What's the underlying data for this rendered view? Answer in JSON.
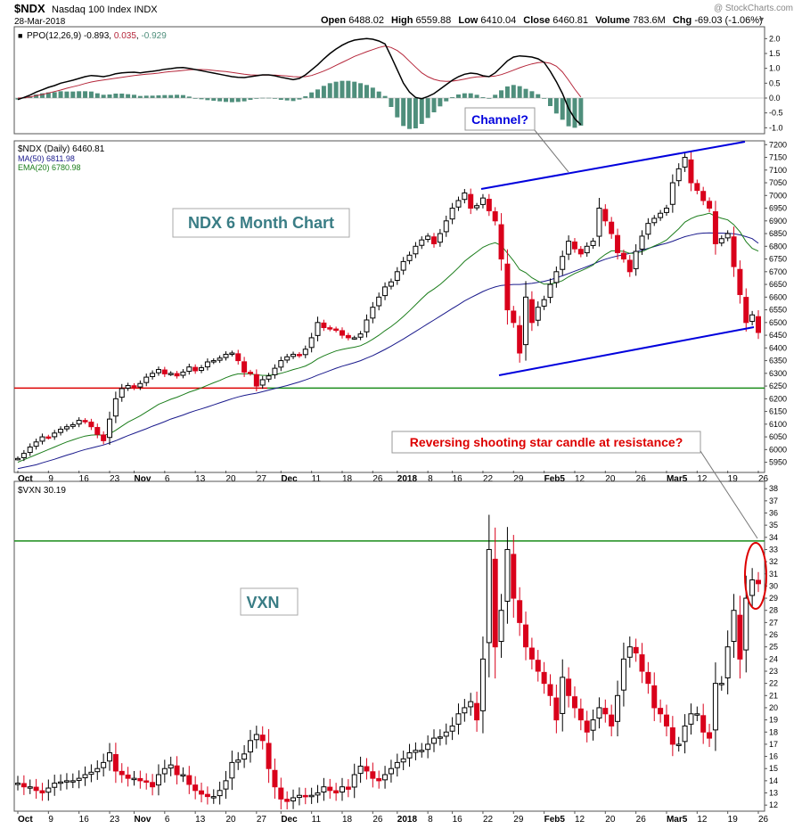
{
  "header": {
    "symbol": "$NDX",
    "name": "Nasdaq 100 Index",
    "exchange": "INDX",
    "date": "28-Mar-2018",
    "quote_open_label": "Open",
    "quote_open": "6488.02",
    "quote_high_label": "High",
    "quote_high": "6559.88",
    "quote_low_label": "Low",
    "quote_low": "6410.04",
    "quote_close_label": "Close",
    "quote_close": "6460.81",
    "quote_volume_label": "Volume",
    "quote_volume": "783.6M",
    "quote_chg_label": "Chg",
    "quote_chg": "-69.03 (-1.06%)",
    "watermark": "@ StockCharts.com"
  },
  "colors": {
    "up": "#000000",
    "down": "#d9001b",
    "ppo": "#000000",
    "signal": "#b5263a",
    "hist": "#4f8f7c",
    "ma50": "#1a1a8c",
    "ema20": "#1b7d1b",
    "annotation_blue": "#0000dd",
    "annotation_red": "#dd0000",
    "green_line": "#1a8c1a",
    "red_line": "#dd0000"
  },
  "chart_data": [
    {
      "type": "line",
      "panel": "ppo",
      "legend": {
        "name": "PPO(12,26,9)",
        "v1": "-0.893",
        "v2": "0.035",
        "v3": "-0.929"
      },
      "ylim": [
        -1.2,
        2.4
      ],
      "ticks": [
        "2.0",
        "1.5",
        "1.0",
        "0.5",
        "0.0",
        "-0.5",
        "-1.0"
      ],
      "ppo": [
        -0.05,
        0.02,
        0.1,
        0.2,
        0.28,
        0.36,
        0.42,
        0.5,
        0.55,
        0.6,
        0.66,
        0.72,
        0.76,
        0.74,
        0.72,
        0.76,
        0.82,
        0.85,
        0.86,
        0.87,
        0.85,
        0.88,
        0.9,
        0.93,
        0.97,
        0.99,
        1.02,
        1.03,
        1.0,
        0.96,
        0.92,
        0.88,
        0.84,
        0.8,
        0.76,
        0.72,
        0.7,
        0.69,
        0.72,
        0.75,
        0.78,
        0.78,
        0.75,
        0.7,
        0.66,
        0.62,
        0.66,
        0.78,
        0.95,
        1.12,
        1.32,
        1.5,
        1.65,
        1.78,
        1.88,
        1.95,
        1.98,
        2.0,
        1.98,
        1.92,
        1.82,
        1.4,
        0.95,
        0.5,
        0.2,
        0.02,
        -0.02,
        0.05,
        0.15,
        0.3,
        0.45,
        0.6,
        0.72,
        0.8,
        0.84,
        0.82,
        0.75,
        0.72,
        0.85,
        1.05,
        1.25,
        1.38,
        1.42,
        1.4,
        1.38,
        1.32,
        1.2,
        0.9,
        0.55,
        0.15,
        -0.35,
        -0.7,
        -0.893
      ],
      "signal": [
        0.0,
        0.01,
        0.04,
        0.08,
        0.12,
        0.17,
        0.22,
        0.27,
        0.33,
        0.38,
        0.43,
        0.49,
        0.54,
        0.58,
        0.61,
        0.64,
        0.67,
        0.7,
        0.73,
        0.76,
        0.78,
        0.8,
        0.82,
        0.84,
        0.87,
        0.89,
        0.91,
        0.93,
        0.95,
        0.96,
        0.96,
        0.95,
        0.93,
        0.91,
        0.89,
        0.86,
        0.83,
        0.8,
        0.78,
        0.77,
        0.77,
        0.77,
        0.77,
        0.76,
        0.74,
        0.72,
        0.71,
        0.72,
        0.76,
        0.83,
        0.91,
        1.0,
        1.1,
        1.2,
        1.3,
        1.4,
        1.48,
        1.56,
        1.63,
        1.7,
        1.75,
        1.7,
        1.6,
        1.44,
        1.24,
        1.04,
        0.85,
        0.72,
        0.63,
        0.58,
        0.56,
        0.57,
        0.6,
        0.64,
        0.68,
        0.71,
        0.72,
        0.72,
        0.74,
        0.79,
        0.86,
        0.94,
        1.02,
        1.09,
        1.15,
        1.19,
        1.21,
        1.17,
        1.07,
        0.88,
        0.6,
        0.3,
        0.035
      ]
    },
    {
      "type": "candlestick",
      "panel": "ndx",
      "legend": {
        "name": "$NDX (Daily)",
        "value": "6460.81",
        "ma_label": "MA(50)",
        "ma_value": "6811.98",
        "ema_label": "EMA(20)",
        "ema_value": "6780.98"
      },
      "ylim": [
        5910,
        7215
      ],
      "ticks": [
        "7200",
        "7150",
        "7100",
        "7050",
        "7000",
        "6950",
        "6900",
        "6850",
        "6800",
        "6750",
        "6700",
        "6650",
        "6600",
        "6550",
        "6500",
        "6450",
        "6400",
        "6350",
        "6300",
        "6250",
        "6200",
        "6150",
        "6100",
        "6050",
        "6000",
        "5950"
      ],
      "x_labels": [
        "Oct",
        "9",
        "16",
        "23",
        "Nov",
        "6",
        "13",
        "20",
        "27",
        "Dec",
        "11",
        "18",
        "26",
        "2018",
        "8",
        "16",
        "22",
        "29",
        "Feb5",
        "12",
        "20",
        "26",
        "Mar5",
        "12",
        "19",
        "26"
      ],
      "x_label_index": [
        0,
        5,
        10,
        15,
        19,
        24,
        29,
        34,
        39,
        43,
        48,
        53,
        58,
        62,
        67,
        71,
        76,
        81,
        86,
        91,
        96,
        101,
        106,
        111,
        116,
        121
      ],
      "close": [
        5965,
        5985,
        6010,
        6030,
        6050,
        6048,
        6065,
        6080,
        6090,
        6098,
        6115,
        6110,
        6090,
        6060,
        6035,
        6120,
        6200,
        6240,
        6252,
        6244,
        6260,
        6285,
        6300,
        6315,
        6298,
        6300,
        6290,
        6305,
        6325,
        6310,
        6322,
        6345,
        6350,
        6360,
        6375,
        6380,
        6350,
        6305,
        6300,
        6250,
        6275,
        6290,
        6320,
        6350,
        6365,
        6375,
        6370,
        6395,
        6440,
        6500,
        6480,
        6475,
        6470,
        6450,
        6440,
        6440,
        6455,
        6510,
        6560,
        6600,
        6640,
        6660,
        6700,
        6740,
        6765,
        6800,
        6825,
        6840,
        6810,
        6850,
        6900,
        6950,
        6980,
        7010,
        6950,
        6960,
        6990,
        6940,
        6900,
        6750,
        6550,
        6500,
        6380,
        6600,
        6500,
        6560,
        6590,
        6650,
        6700,
        6760,
        6820,
        6790,
        6770,
        6800,
        6820,
        6950,
        6900,
        6850,
        6775,
        6750,
        6700,
        6780,
        6840,
        6890,
        6910,
        6930,
        6950,
        7050,
        7105,
        7150,
        7050,
        7020,
        6980,
        6950,
        6810,
        6830,
        6850,
        6720,
        6610,
        6500,
        6530,
        6460.81
      ],
      "ma50": [
        5925,
        5930,
        5935,
        5940,
        5948,
        5955,
        5962,
        5970,
        5978,
        5985,
        5993,
        6000,
        6006,
        6012,
        6018,
        6026,
        6035,
        6045,
        6055,
        6064,
        6073,
        6082,
        6092,
        6101,
        6110,
        6120,
        6128,
        6136,
        6145,
        6153,
        6160,
        6168,
        6176,
        6184,
        6192,
        6200,
        6207,
        6213,
        6218,
        6222,
        6228,
        6234,
        6240,
        6246,
        6252,
        6259,
        6266,
        6274,
        6283,
        6293,
        6302,
        6311,
        6320,
        6328,
        6335,
        6342,
        6350,
        6360,
        6370,
        6382,
        6394,
        6407,
        6421,
        6435,
        6450,
        6465,
        6480,
        6495,
        6510,
        6525,
        6540,
        6555,
        6570,
        6585,
        6598,
        6610,
        6622,
        6632,
        6640,
        6646,
        6648,
        6650,
        6650,
        6652,
        6654,
        6658,
        6662,
        6668,
        6676,
        6684,
        6693,
        6702,
        6711,
        6720,
        6730,
        6740,
        6749,
        6756,
        6762,
        6767,
        6772,
        6778,
        6785,
        6792,
        6799,
        6806,
        6812,
        6820,
        6829,
        6838,
        6844,
        6849,
        6852,
        6853,
        6852,
        6852,
        6851,
        6849,
        6845,
        6838,
        6830,
        6811.98
      ],
      "ema20": [
        5950,
        5960,
        5970,
        5980,
        5990,
        6000,
        6010,
        6020,
        6030,
        6038,
        6046,
        6053,
        6057,
        6058,
        6056,
        6062,
        6076,
        6092,
        6108,
        6120,
        6133,
        6148,
        6163,
        6178,
        6188,
        6198,
        6206,
        6216,
        6226,
        6234,
        6243,
        6253,
        6263,
        6272,
        6283,
        6292,
        6298,
        6298,
        6298,
        6294,
        6292,
        6292,
        6295,
        6300,
        6307,
        6315,
        6321,
        6329,
        6341,
        6357,
        6369,
        6379,
        6388,
        6394,
        6399,
        6403,
        6409,
        6420,
        6434,
        6450,
        6468,
        6484,
        6503,
        6524,
        6546,
        6570,
        6594,
        6616,
        6632,
        6650,
        6671,
        6693,
        6716,
        6741,
        6760,
        6778,
        6796,
        6807,
        6814,
        6803,
        6773,
        6743,
        6708,
        6696,
        6676,
        6663,
        6651,
        6652,
        6656,
        6665,
        6680,
        6693,
        6703,
        6714,
        6726,
        6750,
        6768,
        6782,
        6782,
        6780,
        6772,
        6773,
        6779,
        6790,
        6801,
        6812,
        6825,
        6847,
        6869,
        6895,
        6909,
        6919,
        6924,
        6930,
        6918,
        6910,
        6904,
        6885,
        6857,
        6818,
        6792,
        6780.98
      ]
    },
    {
      "type": "candlestick",
      "panel": "vxn",
      "legend": {
        "name": "$VXN",
        "value": "30.19"
      },
      "ylim": [
        11.5,
        38.6
      ],
      "ticks": [
        "38",
        "37",
        "36",
        "35",
        "34",
        "33",
        "32",
        "31",
        "30",
        "29",
        "28",
        "27",
        "26",
        "25",
        "24",
        "23",
        "22",
        "21",
        "20",
        "19",
        "18",
        "17",
        "16",
        "15",
        "14",
        "13",
        "12"
      ],
      "x_labels": [
        "Oct",
        "9",
        "16",
        "23",
        "Nov",
        "6",
        "13",
        "20",
        "27",
        "Dec",
        "11",
        "18",
        "26",
        "2018",
        "8",
        "16",
        "22",
        "29",
        "Feb5",
        "12",
        "20",
        "26",
        "Mar5",
        "12",
        "19",
        "26"
      ],
      "close": [
        13.8,
        13.5,
        13.5,
        13.2,
        13.0,
        13.4,
        13.8,
        13.9,
        14.0,
        14.0,
        14.2,
        14.5,
        14.7,
        15.0,
        15.5,
        16.3,
        14.8,
        14.5,
        14.2,
        14.2,
        14.0,
        13.9,
        13.5,
        14.5,
        15.0,
        15.3,
        14.5,
        14.5,
        13.7,
        13.2,
        12.9,
        12.7,
        12.7,
        13.2,
        14.0,
        15.5,
        15.7,
        16.2,
        17.3,
        17.8,
        17.3,
        15.0,
        13.5,
        12.5,
        12.3,
        12.6,
        12.8,
        12.7,
        12.8,
        13.0,
        13.5,
        13.2,
        13.0,
        13.5,
        13.3,
        14.5,
        15.2,
        14.8,
        14.2,
        14.0,
        14.5,
        15.0,
        15.5,
        15.8,
        16.3,
        16.5,
        16.5,
        17.0,
        17.5,
        17.6,
        18.0,
        18.5,
        19.5,
        20.0,
        20.5,
        19.0,
        24.0,
        33.0,
        25.0,
        28.0,
        33.0,
        29.0,
        27.0,
        25.0,
        24.0,
        23.0,
        22.0,
        21.0,
        19.0,
        22.5,
        21.0,
        20.0,
        19.0,
        18.0,
        19.0,
        20.0,
        19.5,
        18.5,
        21.0,
        24.0,
        25.0,
        24.5,
        23.0,
        22.0,
        20.0,
        19.5,
        18.5,
        17.0,
        17.0,
        18.5,
        19.5,
        19.5,
        18.0,
        17.5,
        22.0,
        22.0,
        25.0,
        28.0,
        24.0,
        29.0,
        30.5,
        30.19
      ],
      "resistance": 33.7
    }
  ],
  "annotations": {
    "title_box": "NDX 6 Month Chart",
    "channel_label": "Channel?",
    "star_label": "Reversing shooting star candle at resistance?",
    "vxn_box": "VXN",
    "red_line_value": 6242,
    "green_line_value": 6242
  }
}
